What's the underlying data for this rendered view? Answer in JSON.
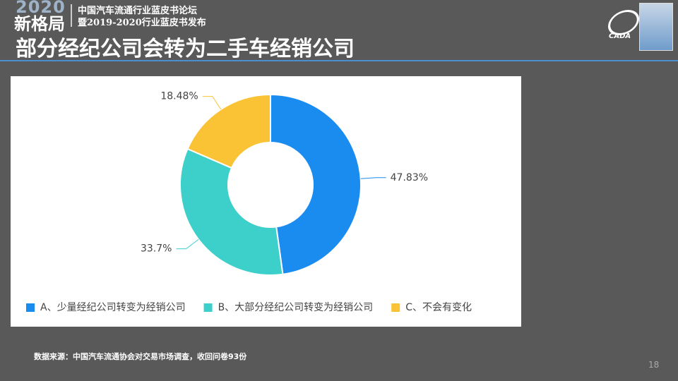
{
  "header": {
    "logo_year": "2020",
    "logo_word": "新格局",
    "line1": "中国汽车流通行业蓝皮书论坛",
    "line2": "暨2019-2020行业蓝皮书发布",
    "title": "部分经纪公司会转为二手车经销公司",
    "org": "CADA"
  },
  "chart_data": {
    "type": "pie",
    "donut": true,
    "categories": [
      "A、少量经纪公司转变为经销公司",
      "B、大部分经纪公司转变为经销公司",
      "C、不会有变化"
    ],
    "values": [
      47.83,
      33.7,
      18.48
    ],
    "value_labels": [
      "47.83%",
      "33.7%",
      "18.48%"
    ],
    "colors": [
      "#1a8cf0",
      "#3dcfc9",
      "#fac235"
    ],
    "legend": "bottom"
  },
  "footer": {
    "source": "数据来源：中国汽车流通协会对交易市场调查，收回问卷93份",
    "page": "18"
  }
}
